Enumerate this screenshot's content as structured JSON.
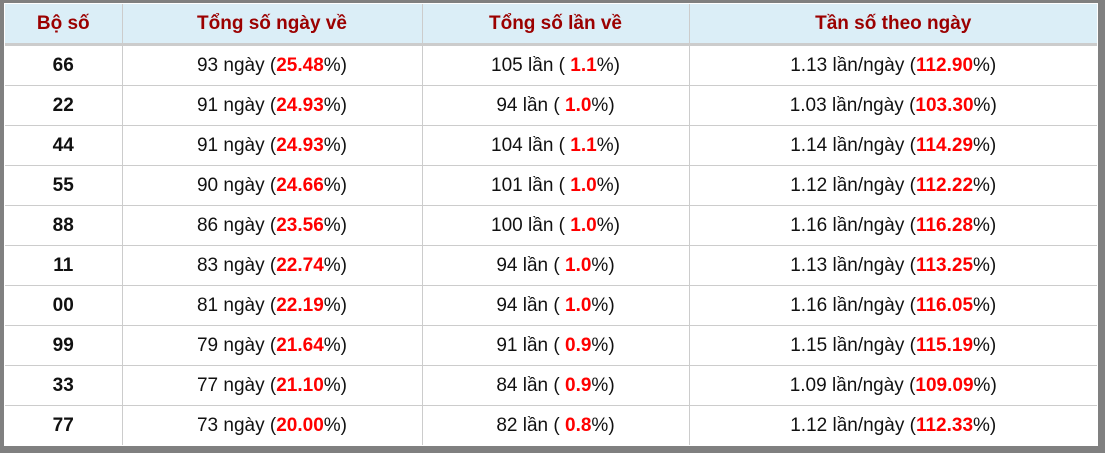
{
  "headers": [
    "Bộ số",
    "Tổng số ngày về",
    "Tổng số lần về",
    "Tần số theo ngày"
  ],
  "colors": {
    "header_text": "#9b0000",
    "header_bg": "#dbeef7",
    "highlight": "#ff0000"
  },
  "rows": [
    {
      "bo_so": "66",
      "ngay": "93",
      "ngay_pct": "25.48",
      "lan": "105",
      "lan_pct": "1.1",
      "tan_so": "1.13",
      "tan_so_pct": "112.90"
    },
    {
      "bo_so": "22",
      "ngay": "91",
      "ngay_pct": "24.93",
      "lan": "94",
      "lan_pct": "1.0",
      "tan_so": "1.03",
      "tan_so_pct": "103.30"
    },
    {
      "bo_so": "44",
      "ngay": "91",
      "ngay_pct": "24.93",
      "lan": "104",
      "lan_pct": "1.1",
      "tan_so": "1.14",
      "tan_so_pct": "114.29"
    },
    {
      "bo_so": "55",
      "ngay": "90",
      "ngay_pct": "24.66",
      "lan": "101",
      "lan_pct": "1.0",
      "tan_so": "1.12",
      "tan_so_pct": "112.22"
    },
    {
      "bo_so": "88",
      "ngay": "86",
      "ngay_pct": "23.56",
      "lan": "100",
      "lan_pct": "1.0",
      "tan_so": "1.16",
      "tan_so_pct": "116.28"
    },
    {
      "bo_so": "11",
      "ngay": "83",
      "ngay_pct": "22.74",
      "lan": "94",
      "lan_pct": "1.0",
      "tan_so": "1.13",
      "tan_so_pct": "113.25"
    },
    {
      "bo_so": "00",
      "ngay": "81",
      "ngay_pct": "22.19",
      "lan": "94",
      "lan_pct": "1.0",
      "tan_so": "1.16",
      "tan_so_pct": "116.05"
    },
    {
      "bo_so": "99",
      "ngay": "79",
      "ngay_pct": "21.64",
      "lan": "91",
      "lan_pct": "0.9",
      "tan_so": "1.15",
      "tan_so_pct": "115.19"
    },
    {
      "bo_so": "33",
      "ngay": "77",
      "ngay_pct": "21.10",
      "lan": "84",
      "lan_pct": "0.9",
      "tan_so": "1.09",
      "tan_so_pct": "109.09"
    },
    {
      "bo_so": "77",
      "ngay": "73",
      "ngay_pct": "20.00",
      "lan": "82",
      "lan_pct": "0.8",
      "tan_so": "1.12",
      "tan_so_pct": "112.33"
    }
  ],
  "units": {
    "ngay": "ngày",
    "lan": "lần",
    "tan_so": "lần/ngày"
  }
}
